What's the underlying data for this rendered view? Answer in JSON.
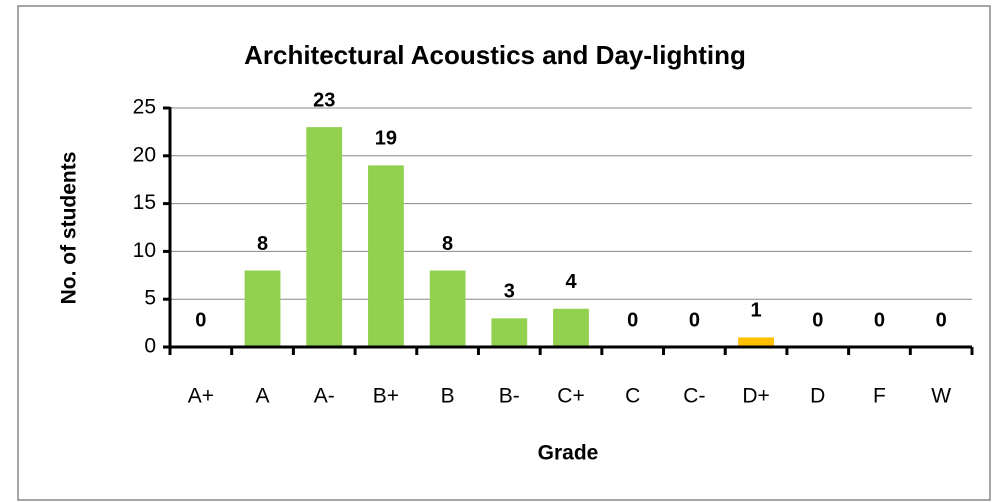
{
  "chart_data": {
    "type": "bar",
    "title": "Architectural Acoustics and Day-lighting",
    "categories": [
      "A+",
      "A",
      "A-",
      "B+",
      "B",
      "B-",
      "C+",
      "C",
      "C-",
      "D+",
      "D",
      "F",
      "W"
    ],
    "values": [
      0,
      8,
      23,
      19,
      8,
      3,
      4,
      0,
      0,
      1,
      0,
      0,
      0
    ],
    "colors": [
      "#92d050",
      "#92d050",
      "#92d050",
      "#92d050",
      "#92d050",
      "#92d050",
      "#92d050",
      "#92d050",
      "#92d050",
      "#ffc000",
      "#92d050",
      "#92d050",
      "#92d050"
    ],
    "x_label": "Grade",
    "y_label": "No. of students",
    "ylim": [
      0,
      25
    ],
    "yticks": [
      0,
      5,
      10,
      15,
      20,
      25
    ],
    "grid": true
  }
}
